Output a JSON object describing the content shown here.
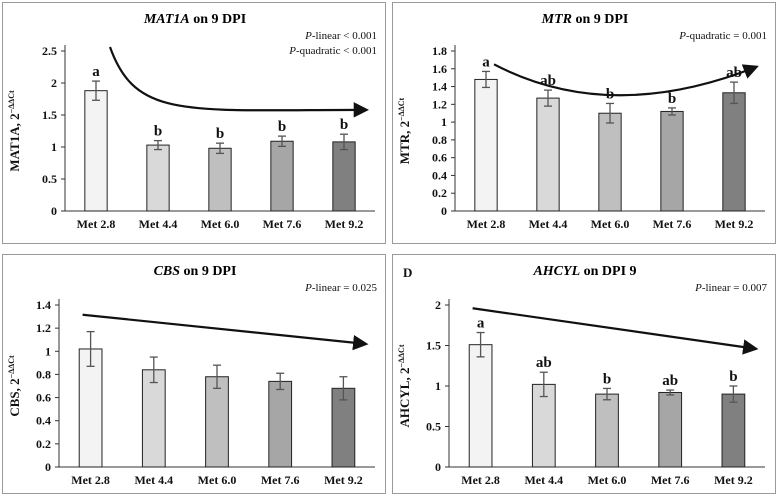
{
  "chart_data": [
    {
      "type": "bar",
      "title_gene": "MAT1A",
      "title_rest": " on 9 DPI",
      "title_italic_gene": true,
      "panel_label": "",
      "ylabel_main": "MAT1A, 2",
      "ylabel_sup": "−ΔΔCt",
      "categories": [
        "Met 2.8",
        "Met 4.4",
        "Met 6.0",
        "Met 7.6",
        "Met 9.2"
      ],
      "values": [
        1.88,
        1.03,
        0.98,
        1.09,
        1.08
      ],
      "errors": [
        0.15,
        0.07,
        0.08,
        0.08,
        0.12
      ],
      "letters": [
        "a",
        "b",
        "b",
        "b",
        "b"
      ],
      "ylim": [
        0,
        2.5
      ],
      "yticks": [
        0,
        0.5,
        1,
        1.5,
        2,
        2.5
      ],
      "ytick_labels": [
        "0",
        "0.5",
        "1",
        "1.5",
        "2",
        "2.5"
      ],
      "stats": [
        {
          "p": "P",
          "text": "-linear < 0.001"
        },
        {
          "p": "P",
          "text": "-quadratic < 0.001"
        }
      ],
      "trend": "curve"
    },
    {
      "type": "bar",
      "title_gene": "MTR",
      "title_rest": " on 9 DPI",
      "title_italic_gene": true,
      "panel_label": "",
      "ylabel_main": "MTR, 2",
      "ylabel_sup": "−ΔΔCt",
      "categories": [
        "Met 2.8",
        "Met 4.4",
        "Met 6.0",
        "Met 7.6",
        "Met 9.2"
      ],
      "values": [
        1.48,
        1.27,
        1.1,
        1.12,
        1.33
      ],
      "errors": [
        0.09,
        0.09,
        0.11,
        0.04,
        0.12
      ],
      "letters": [
        "a",
        "ab",
        "b",
        "b",
        "ab"
      ],
      "ylim": [
        0,
        1.8
      ],
      "yticks": [
        0,
        0.2,
        0.4,
        0.6,
        0.8,
        1,
        1.2,
        1.4,
        1.6,
        1.8
      ],
      "ytick_labels": [
        "0",
        "0.2",
        "0.4",
        "0.6",
        "0.8",
        "1",
        "1.2",
        "1.4",
        "1.6",
        "1.8"
      ],
      "stats": [
        {
          "p": "P",
          "text": "-quadratic = 0.001"
        }
      ],
      "trend": "quadratic"
    },
    {
      "type": "bar",
      "title_gene": "CBS",
      "title_rest": " on 9 DPI",
      "title_italic_gene": true,
      "panel_label": "",
      "ylabel_main": "CBS, 2",
      "ylabel_sup": "−ΔΔCt",
      "categories": [
        "Met 2.8",
        "Met 4.4",
        "Met 6.0",
        "Met 7.6",
        "Met 9.2"
      ],
      "values": [
        1.02,
        0.84,
        0.78,
        0.74,
        0.68
      ],
      "errors": [
        0.15,
        0.11,
        0.1,
        0.07,
        0.1
      ],
      "letters": [
        "",
        "",
        "",
        "",
        ""
      ],
      "ylim": [
        0,
        1.4
      ],
      "yticks": [
        0,
        0.2,
        0.4,
        0.6,
        0.8,
        1,
        1.2,
        1.4
      ],
      "ytick_labels": [
        "0",
        "0.2",
        "0.4",
        "0.6",
        "0.8",
        "1",
        "1.2",
        "1.4"
      ],
      "stats": [
        {
          "p": "P",
          "text": "-linear  = 0.025"
        }
      ],
      "trend": "linear"
    },
    {
      "type": "bar",
      "title_gene": "AHCYL",
      "title_rest": " on DPI 9",
      "title_italic_gene": true,
      "panel_label": "D",
      "ylabel_main": "AHCYL, 2",
      "ylabel_sup": "−ΔΔCt",
      "categories": [
        "Met 2.8",
        "Met 4.4",
        "Met 6.0",
        "Met 7.6",
        "Met 9.2"
      ],
      "values": [
        1.51,
        1.02,
        0.9,
        0.92,
        0.9
      ],
      "errors": [
        0.15,
        0.15,
        0.07,
        0.03,
        0.1
      ],
      "letters": [
        "a",
        "ab",
        "b",
        "ab",
        "b"
      ],
      "ylim": [
        0,
        2
      ],
      "yticks": [
        0,
        0.5,
        1,
        1.5,
        2
      ],
      "ytick_labels": [
        "0",
        "0.5",
        "1",
        "1.5",
        "2"
      ],
      "stats": [
        {
          "p": "P",
          "text": "-linear  = 0.007"
        }
      ],
      "trend": "linear"
    }
  ],
  "colors": {
    "bar_fills": [
      "#f3f3f3",
      "#d9d9d9",
      "#bfbfbf",
      "#a6a6a6",
      "#808080"
    ],
    "bar_stroke": "#222222",
    "axis": "#333333",
    "error_bar": "#555555",
    "arrow": "#111111"
  }
}
